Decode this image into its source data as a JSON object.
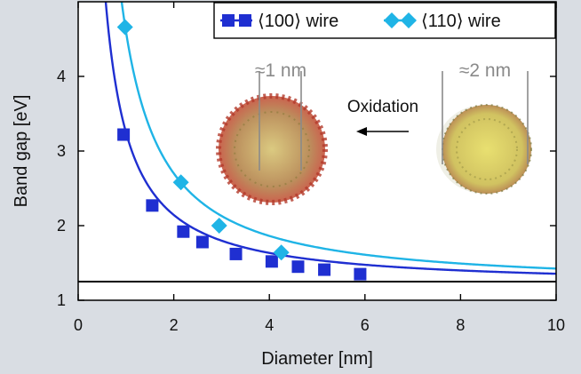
{
  "chart_data": {
    "type": "scatter",
    "title": "",
    "xlabel": "Diameter [nm]",
    "ylabel": "Band gap [eV]",
    "xlim": [
      0,
      10
    ],
    "ylim": [
      1,
      5
    ],
    "x_ticks": [
      0,
      2,
      4,
      6,
      8,
      10
    ],
    "y_ticks": [
      1,
      2,
      3,
      4
    ],
    "grid": false,
    "legend_position": "top-right",
    "series": [
      {
        "name": "⟨100⟩ wire",
        "color": "#1f2fd1",
        "marker": "square",
        "points": [
          {
            "x": 0.95,
            "y": 3.22
          },
          {
            "x": 1.55,
            "y": 2.27
          },
          {
            "x": 2.2,
            "y": 1.92
          },
          {
            "x": 2.6,
            "y": 1.78
          },
          {
            "x": 3.3,
            "y": 1.62
          },
          {
            "x": 4.05,
            "y": 1.52
          },
          {
            "x": 4.6,
            "y": 1.45
          },
          {
            "x": 5.15,
            "y": 1.41
          },
          {
            "x": 5.9,
            "y": 1.35
          }
        ],
        "fit": {
          "Eg": 1.2,
          "A": 2.05,
          "n": 1.12
        }
      },
      {
        "name": "⟨110⟩ wire",
        "color": "#1fb4e6",
        "marker": "diamond",
        "points": [
          {
            "x": 0.98,
            "y": 4.66
          },
          {
            "x": 2.15,
            "y": 2.58
          },
          {
            "x": 2.95,
            "y": 2.0
          },
          {
            "x": 4.25,
            "y": 1.64
          }
        ],
        "fit": {
          "Eg": 1.2,
          "A": 3.4,
          "n": 1.18
        }
      }
    ],
    "reference_line": {
      "y": 1.25
    },
    "annotations": [
      {
        "id": "scale1",
        "text": "≈1 nm"
      },
      {
        "id": "scale2",
        "text": "≈2 nm"
      },
      {
        "id": "oxidation",
        "text": "Oxidation"
      }
    ]
  }
}
